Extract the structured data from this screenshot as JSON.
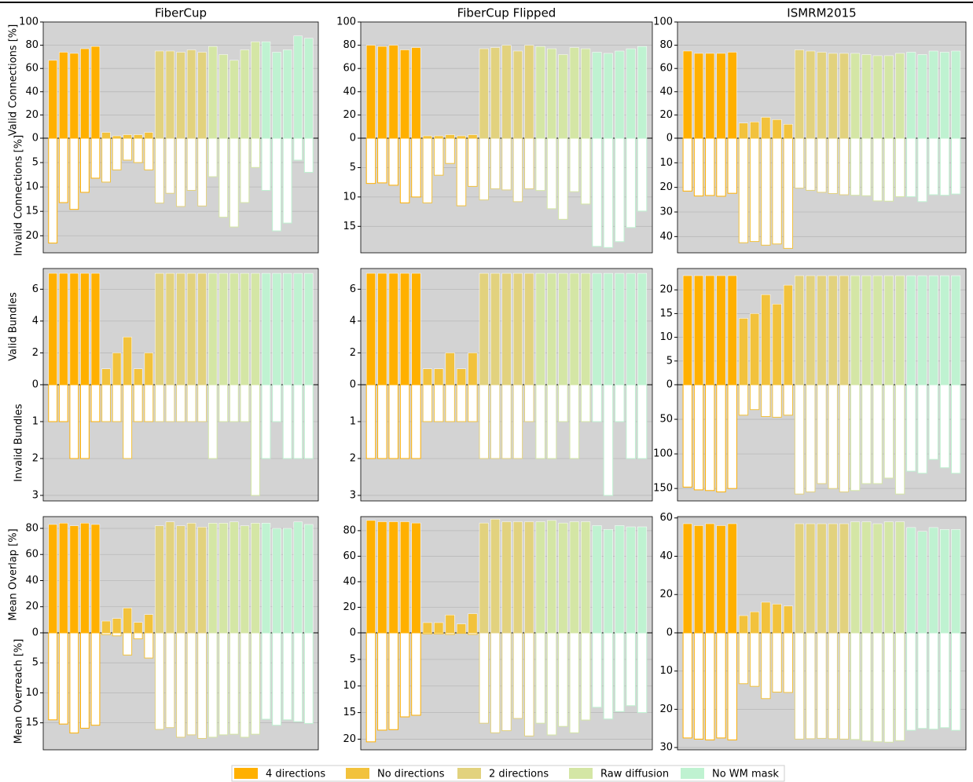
{
  "chart_data": {
    "type": "bar",
    "legend_position": "bottom",
    "series": [
      {
        "name": "4 directions",
        "color": "#ffb000"
      },
      {
        "name": "No directions",
        "color": "#f2c23c"
      },
      {
        "name": "2 directions",
        "color": "#e2d27e"
      },
      {
        "name": "Raw diffusion",
        "color": "#d4e6a5"
      },
      {
        "name": "No WM mask",
        "color": "#bff2d1"
      }
    ],
    "panels": [
      {
        "title": "FiberCup",
        "ylabel": "Valid Connections [%]",
        "ylim": [
          0,
          100
        ],
        "yticks": [
          0,
          20,
          40,
          60,
          80,
          100
        ],
        "values": [
          67,
          74,
          73,
          77,
          79,
          5,
          2,
          3,
          3,
          5,
          75,
          75,
          74,
          76,
          74,
          79,
          72,
          67,
          76,
          83,
          83,
          74,
          76,
          88,
          86
        ],
        "ylabel2": "Invalid Connections [%]",
        "y2lim": [
          0,
          23.5
        ],
        "y2ticks": [
          5,
          10,
          15,
          20
        ],
        "values2": [
          21.5,
          13.2,
          14.6,
          11.1,
          8.2,
          9,
          6.5,
          4.5,
          5,
          6.5,
          13.3,
          11.3,
          14,
          10.7,
          13.9,
          7.9,
          16.2,
          18.2,
          13.2,
          6,
          10.7,
          19,
          17.4,
          4.5,
          7
        ]
      },
      {
        "title": "FiberCup Flipped",
        "ylim": [
          0,
          100
        ],
        "yticks": [
          0,
          20,
          40,
          60,
          80,
          100
        ],
        "values": [
          80,
          79,
          80,
          76,
          78,
          2,
          2,
          3,
          2,
          3,
          77,
          78,
          80,
          75,
          80,
          79,
          77,
          72,
          78,
          77,
          74,
          73,
          75,
          77,
          79
        ],
        "y2lim": [
          0,
          19.5
        ],
        "y2ticks": [
          5,
          10,
          15
        ],
        "values2": [
          7.7,
          7.6,
          8,
          11,
          10,
          11,
          6.3,
          4.3,
          11.5,
          8.2,
          10.5,
          8.6,
          8.8,
          10.8,
          8.6,
          8.9,
          12,
          13.8,
          9.1,
          11.2,
          18.4,
          18.6,
          17.6,
          15.2,
          12.4
        ]
      },
      {
        "title": "ISMRM2015",
        "ylim": [
          0,
          100
        ],
        "yticks": [
          0,
          20,
          40,
          60,
          80,
          100
        ],
        "values": [
          75,
          73,
          73,
          73,
          74,
          13,
          14,
          18,
          16,
          12,
          76,
          75,
          74,
          73,
          73,
          73,
          72,
          71,
          71,
          73,
          74,
          72,
          75,
          74,
          75
        ],
        "y2lim": [
          0,
          46.6
        ],
        "y2ticks": [
          10,
          20,
          30,
          40
        ],
        "values2": [
          21.5,
          23.5,
          23.3,
          23.6,
          22.4,
          42.5,
          42,
          43.5,
          43,
          44.8,
          20.3,
          21.2,
          22,
          22.5,
          23,
          23.2,
          23.4,
          25.5,
          25.6,
          23.8,
          23.8,
          25.8,
          23,
          23.2,
          22.7
        ]
      },
      {
        "ylabel": "Valid Bundles",
        "ylim": [
          0,
          7.3
        ],
        "yticks": [
          0,
          2,
          4,
          6
        ],
        "values": [
          7,
          7,
          7,
          7,
          7,
          1,
          2,
          3,
          1,
          2,
          7,
          7,
          7,
          7,
          7,
          7,
          7,
          7,
          7,
          7,
          7,
          7,
          7,
          7,
          7
        ],
        "ylabel2": "Invalid Bundles",
        "y2lim": [
          0,
          3.15
        ],
        "y2ticks": [
          1,
          2,
          3
        ],
        "values2": [
          1,
          1,
          2,
          2,
          1,
          1,
          1,
          2,
          1,
          1,
          1,
          1,
          1,
          1,
          1,
          2,
          1,
          1,
          1,
          3,
          2,
          1,
          2,
          2,
          2
        ]
      },
      {
        "ylim": [
          0,
          7.3
        ],
        "yticks": [
          0,
          2,
          4,
          6
        ],
        "values": [
          7,
          7,
          7,
          7,
          7,
          1,
          1,
          2,
          1,
          2,
          7,
          7,
          7,
          7,
          7,
          7,
          7,
          7,
          7,
          7,
          7,
          7,
          7,
          7,
          7
        ],
        "y2lim": [
          0,
          3.15
        ],
        "y2ticks": [
          1,
          2,
          3
        ],
        "values2": [
          2,
          2,
          2,
          2,
          2,
          1,
          1,
          1,
          1,
          1,
          2,
          2,
          2,
          2,
          1,
          2,
          2,
          1,
          2,
          1,
          1,
          3,
          1,
          2,
          2
        ]
      },
      {
        "ylim": [
          0,
          24.5
        ],
        "yticks": [
          0,
          5,
          10,
          15,
          20
        ],
        "values": [
          23,
          23,
          23,
          23,
          23,
          14,
          15,
          19,
          17,
          21,
          23,
          23,
          23,
          23,
          23,
          23,
          23,
          23,
          23,
          23,
          23,
          23,
          23,
          23,
          23
        ],
        "y2lim": [
          0,
          168
        ],
        "y2ticks": [
          50,
          100,
          150
        ],
        "values2": [
          148,
          152,
          153,
          155,
          150,
          44,
          36,
          46,
          47,
          44,
          158,
          155,
          143,
          150,
          155,
          153,
          143,
          143,
          135,
          158,
          125,
          128,
          108,
          120,
          128
        ]
      },
      {
        "ylabel": "Mean Overlap [%]",
        "ylim": [
          0,
          89
        ],
        "yticks": [
          0,
          20,
          40,
          60,
          80
        ],
        "values": [
          83,
          84,
          82,
          84,
          83,
          9,
          11,
          19,
          8,
          14,
          82,
          85,
          82,
          84,
          81,
          84,
          84,
          85,
          82,
          84,
          84,
          80,
          80,
          85,
          83
        ],
        "ylabel2": "Mean Overreach [%]",
        "y2lim": [
          0,
          19.5
        ],
        "y2ticks": [
          5,
          10,
          15
        ],
        "values2": [
          14.5,
          15.2,
          16.7,
          15.9,
          15.4,
          0.3,
          0.5,
          3.7,
          1,
          4.2,
          16.1,
          15.8,
          17.4,
          17,
          17.6,
          17.4,
          17,
          16.9,
          17.4,
          16.9,
          14.4,
          15.4,
          14.5,
          14.8,
          15.1
        ]
      },
      {
        "ylim": [
          0,
          91
        ],
        "yticks": [
          0,
          20,
          40,
          60,
          80
        ],
        "values": [
          88,
          87,
          87,
          87,
          86,
          8,
          8,
          14,
          7,
          15,
          86,
          89,
          87,
          87,
          87,
          87,
          88,
          86,
          87,
          87,
          84,
          81,
          84,
          83,
          83
        ],
        "y2lim": [
          0,
          22
        ],
        "y2ticks": [
          5,
          10,
          15,
          20
        ],
        "values2": [
          20.5,
          18.3,
          18.2,
          15.8,
          15.5,
          0.2,
          0.2,
          0.3,
          0.1,
          0.3,
          17,
          18.8,
          18.4,
          16.1,
          19.4,
          17,
          19.2,
          17.6,
          18.8,
          16.4,
          14,
          16.2,
          14.8,
          13.7,
          15
        ]
      },
      {
        "ylim": [
          0,
          60.7
        ],
        "yticks": [
          0,
          20,
          40,
          60
        ],
        "values": [
          57,
          56,
          57,
          56,
          57,
          9,
          11,
          16,
          15,
          14,
          57,
          57,
          57,
          57,
          57,
          58,
          58,
          57,
          58,
          58,
          55,
          53,
          55,
          54,
          54
        ],
        "y2lim": [
          0,
          30.6
        ],
        "y2ticks": [
          10,
          20,
          30
        ],
        "values2": [
          27.5,
          27.8,
          28,
          27.5,
          28,
          13.3,
          14,
          17.2,
          15.5,
          15.6,
          27.8,
          27.7,
          27.6,
          27.7,
          27.8,
          27.9,
          28.3,
          28.5,
          28.6,
          28.2,
          25.5,
          25,
          25.2,
          24.8,
          25.5
        ]
      }
    ]
  }
}
